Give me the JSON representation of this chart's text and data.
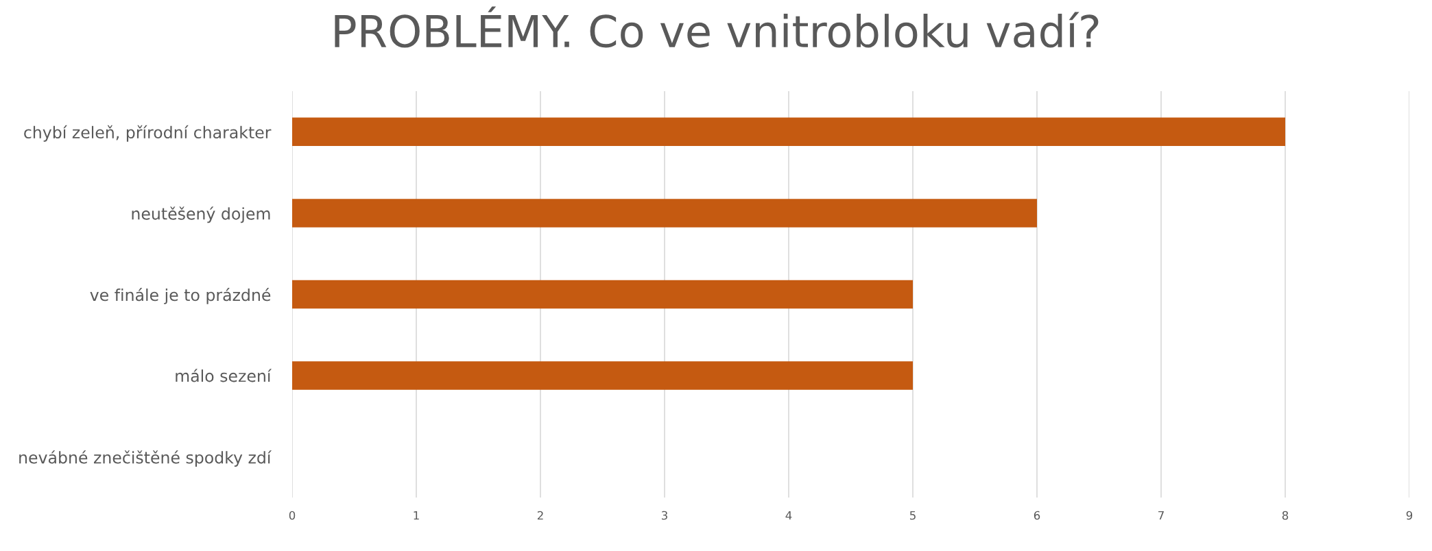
{
  "chart_data": {
    "type": "bar",
    "orientation": "horizontal",
    "title": "PROBLÉMY. Co ve vnitrobloku vadí?",
    "categories": [
      "chybí zeleň, přírodní charakter",
      "neutěšený dojem",
      "ve finále je to prázdné",
      "málo sezení",
      "nevábné znečištěné spodky zdí"
    ],
    "values": [
      8,
      6,
      5,
      5,
      0
    ],
    "color": "#c55a11",
    "xlim": [
      0,
      9
    ],
    "xticks": [
      0,
      1,
      2,
      3,
      4,
      5,
      6,
      7,
      8,
      9
    ],
    "grid": "x"
  }
}
